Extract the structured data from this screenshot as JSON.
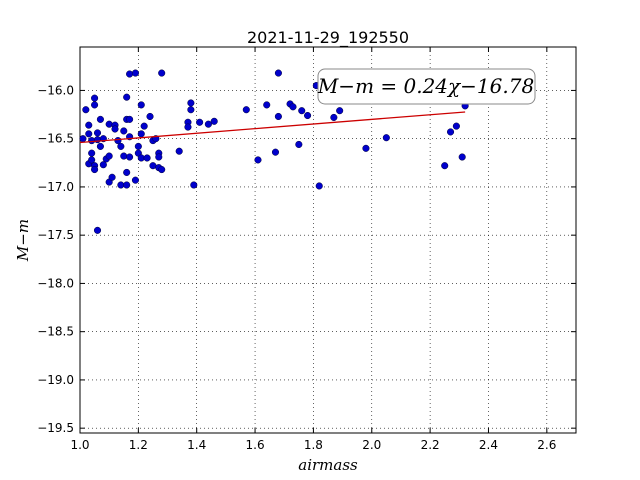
{
  "chart_data": {
    "type": "scatter",
    "title": "2021-11-29_192550",
    "xlabel": "airmass",
    "ylabel": "M−m",
    "xlim": [
      1.0,
      2.7
    ],
    "ylim": [
      -19.55,
      -15.55
    ],
    "xticks": [
      "1.0",
      "1.2",
      "1.4",
      "1.6",
      "1.8",
      "2.0",
      "2.2",
      "2.4",
      "2.6"
    ],
    "yticks": [
      "−16.0",
      "−16.5",
      "−17.0",
      "−17.5",
      "−18.0",
      "−18.5",
      "−19.0",
      "−19.5"
    ],
    "grid": true,
    "annotation": "M−m = 0.24χ−16.78",
    "point_color": "#0000cc",
    "line_color": "#cc0000",
    "fit": {
      "slope": 0.24,
      "intercept": -16.78,
      "x_range": [
        1.0,
        2.32
      ]
    },
    "points": [
      [
        1.01,
        -16.5
      ],
      [
        1.02,
        -16.2
      ],
      [
        1.03,
        -16.36
      ],
      [
        1.03,
        -16.45
      ],
      [
        1.03,
        -16.76
      ],
      [
        1.04,
        -16.52
      ],
      [
        1.04,
        -16.65
      ],
      [
        1.04,
        -16.72
      ],
      [
        1.05,
        -16.08
      ],
      [
        1.05,
        -16.15
      ],
      [
        1.05,
        -16.78
      ],
      [
        1.05,
        -16.82
      ],
      [
        1.06,
        -16.44
      ],
      [
        1.06,
        -16.51
      ],
      [
        1.06,
        -17.45
      ],
      [
        1.07,
        -16.3
      ],
      [
        1.07,
        -16.58
      ],
      [
        1.08,
        -16.5
      ],
      [
        1.08,
        -16.77
      ],
      [
        1.09,
        -16.71
      ],
      [
        1.1,
        -16.35
      ],
      [
        1.1,
        -16.68
      ],
      [
        1.1,
        -16.95
      ],
      [
        1.11,
        -16.9
      ],
      [
        1.12,
        -16.36
      ],
      [
        1.12,
        -16.4
      ],
      [
        1.13,
        -16.52
      ],
      [
        1.14,
        -16.58
      ],
      [
        1.14,
        -16.98
      ],
      [
        1.15,
        -16.42
      ],
      [
        1.15,
        -16.68
      ],
      [
        1.16,
        -16.07
      ],
      [
        1.16,
        -16.3
      ],
      [
        1.16,
        -16.85
      ],
      [
        1.16,
        -16.98
      ],
      [
        1.17,
        -15.83
      ],
      [
        1.17,
        -16.3
      ],
      [
        1.17,
        -16.48
      ],
      [
        1.17,
        -16.69
      ],
      [
        1.19,
        -15.82
      ],
      [
        1.19,
        -16.93
      ],
      [
        1.2,
        -16.58
      ],
      [
        1.2,
        -16.65
      ],
      [
        1.21,
        -16.15
      ],
      [
        1.21,
        -16.45
      ],
      [
        1.21,
        -16.7
      ],
      [
        1.22,
        -16.37
      ],
      [
        1.23,
        -16.7
      ],
      [
        1.24,
        -16.27
      ],
      [
        1.25,
        -16.52
      ],
      [
        1.25,
        -16.78
      ],
      [
        1.26,
        -16.5
      ],
      [
        1.27,
        -16.65
      ],
      [
        1.27,
        -16.69
      ],
      [
        1.27,
        -16.8
      ],
      [
        1.28,
        -15.82
      ],
      [
        1.28,
        -16.82
      ],
      [
        1.34,
        -16.63
      ],
      [
        1.37,
        -16.33
      ],
      [
        1.37,
        -16.38
      ],
      [
        1.38,
        -16.13
      ],
      [
        1.38,
        -16.2
      ],
      [
        1.39,
        -16.98
      ],
      [
        1.41,
        -16.33
      ],
      [
        1.44,
        -16.35
      ],
      [
        1.46,
        -16.32
      ],
      [
        1.57,
        -16.2
      ],
      [
        1.61,
        -16.72
      ],
      [
        1.64,
        -16.15
      ],
      [
        1.67,
        -16.64
      ],
      [
        1.68,
        -15.82
      ],
      [
        1.68,
        -16.27
      ],
      [
        1.72,
        -16.14
      ],
      [
        1.73,
        -16.17
      ],
      [
        1.75,
        -16.56
      ],
      [
        1.76,
        -16.21
      ],
      [
        1.78,
        -16.26
      ],
      [
        1.81,
        -15.95
      ],
      [
        1.82,
        -16.99
      ],
      [
        1.87,
        -16.28
      ],
      [
        1.89,
        -16.21
      ],
      [
        1.98,
        -16.6
      ],
      [
        2.05,
        -16.49
      ],
      [
        2.25,
        -16.78
      ],
      [
        2.27,
        -16.43
      ],
      [
        2.29,
        -16.37
      ],
      [
        2.31,
        -16.69
      ],
      [
        2.32,
        -16.16
      ]
    ]
  }
}
